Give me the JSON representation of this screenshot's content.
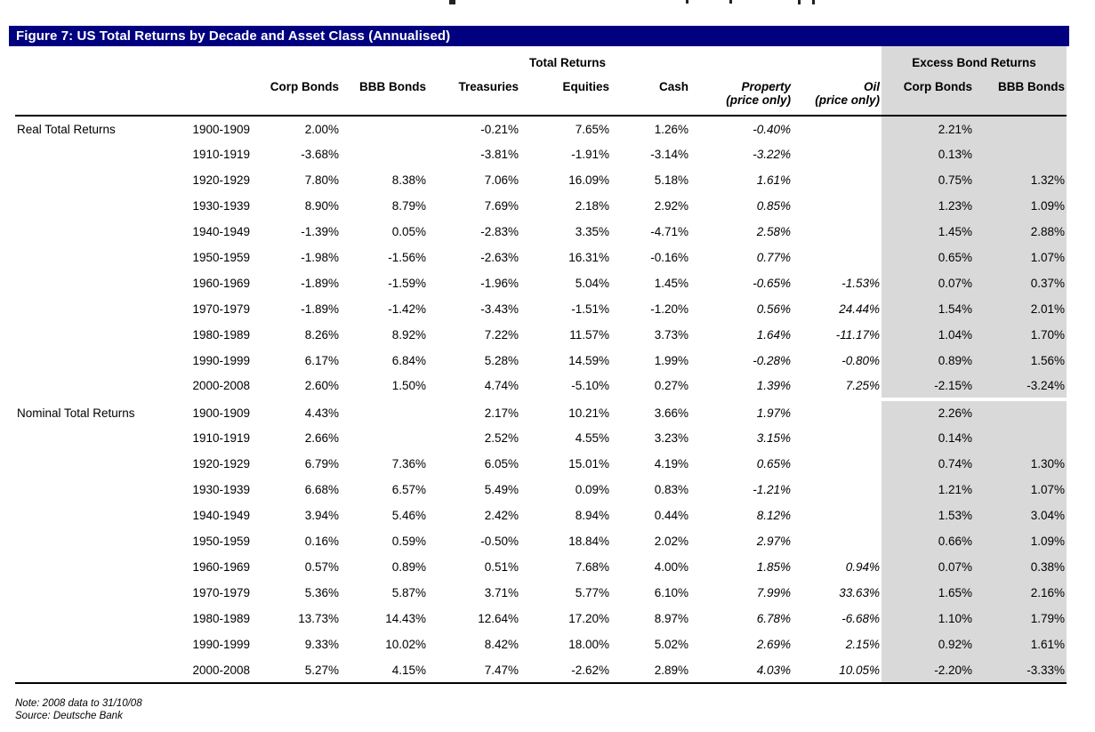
{
  "figure": {
    "title": "Figure 7: US Total Returns by Decade and Asset Class (Annualised)"
  },
  "colors": {
    "title_bar": "#01017f",
    "excess_shading": "#d9d9d9"
  },
  "table": {
    "group_headers": {
      "total_returns": "Total Returns",
      "excess_bond_returns": "Excess Bond Returns"
    },
    "columns": [
      {
        "label": "Corp Bonds"
      },
      {
        "label": "BBB Bonds"
      },
      {
        "label": "Treasuries"
      },
      {
        "label": "Equities"
      },
      {
        "label": "Cash"
      },
      {
        "label": "Property",
        "sub": "(price only)",
        "italic": true
      },
      {
        "label": "Oil",
        "sub": "(price only)",
        "italic": true
      },
      {
        "label": "Corp Bonds",
        "excess": true
      },
      {
        "label": "BBB Bonds",
        "excess": true
      }
    ],
    "sections": [
      {
        "label": "Real Total Returns",
        "rows": [
          {
            "decade": "1900-1909",
            "values": [
              "2.00%",
              "",
              "-0.21%",
              "7.65%",
              "1.26%",
              "-0.40%",
              "",
              "2.21%",
              ""
            ]
          },
          {
            "decade": "1910-1919",
            "values": [
              "-3.68%",
              "",
              "-3.81%",
              "-1.91%",
              "-3.14%",
              "-3.22%",
              "",
              "0.13%",
              ""
            ]
          },
          {
            "decade": "1920-1929",
            "values": [
              "7.80%",
              "8.38%",
              "7.06%",
              "16.09%",
              "5.18%",
              "1.61%",
              "",
              "0.75%",
              "1.32%"
            ]
          },
          {
            "decade": "1930-1939",
            "values": [
              "8.90%",
              "8.79%",
              "7.69%",
              "2.18%",
              "2.92%",
              "0.85%",
              "",
              "1.23%",
              "1.09%"
            ]
          },
          {
            "decade": "1940-1949",
            "values": [
              "-1.39%",
              "0.05%",
              "-2.83%",
              "3.35%",
              "-4.71%",
              "2.58%",
              "",
              "1.45%",
              "2.88%"
            ]
          },
          {
            "decade": "1950-1959",
            "values": [
              "-1.98%",
              "-1.56%",
              "-2.63%",
              "16.31%",
              "-0.16%",
              "0.77%",
              "",
              "0.65%",
              "1.07%"
            ]
          },
          {
            "decade": "1960-1969",
            "values": [
              "-1.89%",
              "-1.59%",
              "-1.96%",
              "5.04%",
              "1.45%",
              "-0.65%",
              "-1.53%",
              "0.07%",
              "0.37%"
            ]
          },
          {
            "decade": "1970-1979",
            "values": [
              "-1.89%",
              "-1.42%",
              "-3.43%",
              "-1.51%",
              "-1.20%",
              "0.56%",
              "24.44%",
              "1.54%",
              "2.01%"
            ]
          },
          {
            "decade": "1980-1989",
            "values": [
              "8.26%",
              "8.92%",
              "7.22%",
              "11.57%",
              "3.73%",
              "1.64%",
              "-11.17%",
              "1.04%",
              "1.70%"
            ]
          },
          {
            "decade": "1990-1999",
            "values": [
              "6.17%",
              "6.84%",
              "5.28%",
              "14.59%",
              "1.99%",
              "-0.28%",
              "-0.80%",
              "0.89%",
              "1.56%"
            ]
          },
          {
            "decade": "2000-2008",
            "values": [
              "2.60%",
              "1.50%",
              "4.74%",
              "-5.10%",
              "0.27%",
              "1.39%",
              "7.25%",
              "-2.15%",
              "-3.24%"
            ]
          }
        ]
      },
      {
        "label": "Nominal Total Returns",
        "rows": [
          {
            "decade": "1900-1909",
            "values": [
              "4.43%",
              "",
              "2.17%",
              "10.21%",
              "3.66%",
              "1.97%",
              "",
              "2.26%",
              ""
            ]
          },
          {
            "decade": "1910-1919",
            "values": [
              "2.66%",
              "",
              "2.52%",
              "4.55%",
              "3.23%",
              "3.15%",
              "",
              "0.14%",
              ""
            ]
          },
          {
            "decade": "1920-1929",
            "values": [
              "6.79%",
              "7.36%",
              "6.05%",
              "15.01%",
              "4.19%",
              "0.65%",
              "",
              "0.74%",
              "1.30%"
            ]
          },
          {
            "decade": "1930-1939",
            "values": [
              "6.68%",
              "6.57%",
              "5.49%",
              "0.09%",
              "0.83%",
              "-1.21%",
              "",
              "1.21%",
              "1.07%"
            ]
          },
          {
            "decade": "1940-1949",
            "values": [
              "3.94%",
              "5.46%",
              "2.42%",
              "8.94%",
              "0.44%",
              "8.12%",
              "",
              "1.53%",
              "3.04%"
            ]
          },
          {
            "decade": "1950-1959",
            "values": [
              "0.16%",
              "0.59%",
              "-0.50%",
              "18.84%",
              "2.02%",
              "2.97%",
              "",
              "0.66%",
              "1.09%"
            ]
          },
          {
            "decade": "1960-1969",
            "values": [
              "0.57%",
              "0.89%",
              "0.51%",
              "7.68%",
              "4.00%",
              "1.85%",
              "0.94%",
              "0.07%",
              "0.38%"
            ]
          },
          {
            "decade": "1970-1979",
            "values": [
              "5.36%",
              "5.87%",
              "3.71%",
              "5.77%",
              "6.10%",
              "7.99%",
              "33.63%",
              "1.65%",
              "2.16%"
            ]
          },
          {
            "decade": "1980-1989",
            "values": [
              "13.73%",
              "14.43%",
              "12.64%",
              "17.20%",
              "8.97%",
              "6.78%",
              "-6.68%",
              "1.10%",
              "1.79%"
            ]
          },
          {
            "decade": "1990-1999",
            "values": [
              "9.33%",
              "10.02%",
              "8.42%",
              "18.00%",
              "5.02%",
              "2.69%",
              "2.15%",
              "0.92%",
              "1.61%"
            ]
          },
          {
            "decade": "2000-2008",
            "values": [
              "5.27%",
              "4.15%",
              "7.47%",
              "-2.62%",
              "2.89%",
              "4.03%",
              "10.05%",
              "-2.20%",
              "-3.33%"
            ]
          }
        ]
      }
    ]
  },
  "footnotes": {
    "note": "Note: 2008 data to 31/10/08",
    "source": "Source: Deutsche Bank"
  }
}
